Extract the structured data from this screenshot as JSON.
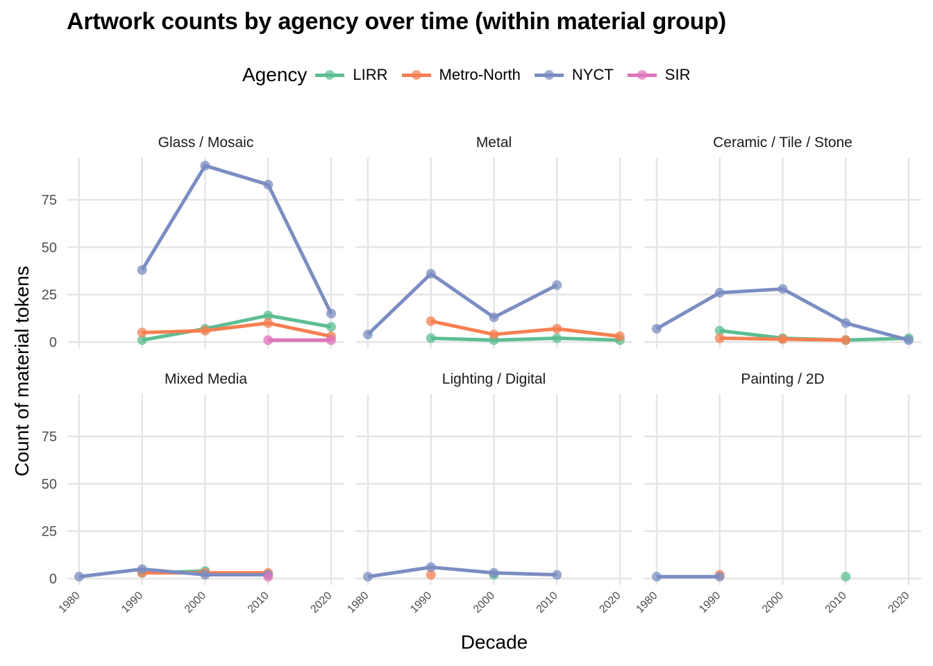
{
  "chart_data": {
    "type": "line",
    "title": "Artwork counts by agency over time (within material group)",
    "xlabel": "Decade",
    "ylabel": "Count of material tokens",
    "x_ticks": [
      1980,
      1990,
      2000,
      2010,
      2020
    ],
    "y_ticks": [
      0,
      25,
      50,
      75
    ],
    "xlim": [
      1980,
      2020
    ],
    "ylim": [
      0,
      93
    ],
    "grid": true,
    "legend": {
      "title": "Agency",
      "position": "top",
      "entries": [
        {
          "name": "LIRR",
          "color": "#66c2a5"
        },
        {
          "name": "Metro-North",
          "color": "#fc8d62"
        },
        {
          "name": "NYCT",
          "color": "#8da0cb"
        },
        {
          "name": "SIR",
          "color": "#e78ac3"
        }
      ]
    },
    "series_colors": {
      "LIRR": "#5dbd92",
      "Metro-North": "#f67f51",
      "NYCT": "#7b8dc1",
      "SIR": "#e073bb"
    },
    "facets": [
      {
        "title": "Glass / Mosaic",
        "series": [
          {
            "name": "LIRR",
            "x": [
              1990,
              2000,
              2010,
              2020
            ],
            "values": [
              1,
              7,
              14,
              8
            ]
          },
          {
            "name": "Metro-North",
            "x": [
              1990,
              2000,
              2010,
              2020
            ],
            "values": [
              5,
              6,
              10,
              3
            ]
          },
          {
            "name": "NYCT",
            "x": [
              1990,
              2000,
              2010,
              2020
            ],
            "values": [
              38,
              93,
              83,
              15
            ]
          },
          {
            "name": "SIR",
            "x": [
              2010,
              2020
            ],
            "values": [
              1,
              1
            ]
          }
        ]
      },
      {
        "title": "Metal",
        "series": [
          {
            "name": "LIRR",
            "x": [
              1990,
              2000,
              2010,
              2020
            ],
            "values": [
              2,
              1,
              2,
              1
            ]
          },
          {
            "name": "Metro-North",
            "x": [
              1990,
              2000,
              2010,
              2020
            ],
            "values": [
              11,
              4,
              7,
              3
            ]
          },
          {
            "name": "NYCT",
            "x": [
              1980,
              1990,
              2000,
              2010
            ],
            "values": [
              4,
              36,
              13,
              30
            ]
          }
        ]
      },
      {
        "title": "Ceramic / Tile / Stone",
        "series": [
          {
            "name": "LIRR",
            "x": [
              1990,
              2000,
              2010,
              2020
            ],
            "values": [
              6,
              2,
              1,
              2
            ]
          },
          {
            "name": "Metro-North",
            "x": [
              1990,
              2000,
              2010
            ],
            "values": [
              2,
              1.5,
              1
            ]
          },
          {
            "name": "NYCT",
            "x": [
              1980,
              1990,
              2000,
              2010,
              2020
            ],
            "values": [
              7,
              26,
              28,
              10,
              1
            ]
          }
        ]
      },
      {
        "title": "Mixed Media",
        "series": [
          {
            "name": "LIRR",
            "x": [
              1990,
              2000
            ],
            "values": [
              3,
              4
            ]
          },
          {
            "name": "Metro-North",
            "x": [
              1990,
              2000,
              2010
            ],
            "values": [
              3,
              3,
              3
            ]
          },
          {
            "name": "NYCT",
            "x": [
              1980,
              1990,
              2000,
              2010
            ],
            "values": [
              1,
              5,
              2,
              2
            ]
          },
          {
            "name": "SIR",
            "x": [
              2010
            ],
            "values": [
              1
            ]
          }
        ]
      },
      {
        "title": "Lighting / Digital",
        "series": [
          {
            "name": "LIRR",
            "x": [
              2000
            ],
            "values": [
              2
            ]
          },
          {
            "name": "Metro-North",
            "x": [
              1990
            ],
            "values": [
              2
            ]
          },
          {
            "name": "NYCT",
            "x": [
              1980,
              1990,
              2000,
              2010
            ],
            "values": [
              1,
              6,
              3,
              2
            ]
          }
        ]
      },
      {
        "title": "Painting / 2D",
        "series": [
          {
            "name": "LIRR",
            "x": [
              2010
            ],
            "values": [
              1
            ]
          },
          {
            "name": "Metro-North",
            "x": [
              1990
            ],
            "values": [
              2
            ]
          },
          {
            "name": "NYCT",
            "x": [
              1980,
              1990
            ],
            "values": [
              1,
              1
            ]
          }
        ]
      }
    ]
  }
}
